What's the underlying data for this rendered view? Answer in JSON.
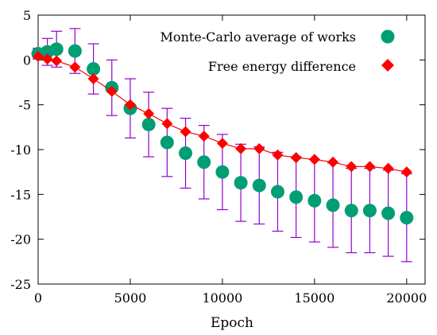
{
  "chart_data": {
    "type": "scatter",
    "xlabel": "Epoch",
    "ylabel": "",
    "xlim": [
      0,
      21000
    ],
    "ylim": [
      -25,
      5
    ],
    "xticks": [
      0,
      5000,
      10000,
      15000,
      20000
    ],
    "yticks": [
      -25,
      -20,
      -15,
      -10,
      -5,
      0,
      5
    ],
    "xtick_labels": [
      "0",
      "5000",
      "10000",
      "15000",
      "20000"
    ],
    "ytick_labels": [
      "-25",
      "-20",
      "-15",
      "-10",
      "-5",
      "0",
      "5"
    ],
    "grid": false,
    "legend_position": "top-right",
    "series": [
      {
        "name": "Monte-Carlo average of works",
        "marker": "circle",
        "color": "#009e73",
        "error_color": "#9400d3",
        "x": [
          0,
          500,
          1000,
          2000,
          3000,
          4000,
          5000,
          6000,
          7000,
          8000,
          9000,
          10000,
          11000,
          12000,
          13000,
          14000,
          15000,
          16000,
          17000,
          18000,
          19000,
          20000
        ],
        "y": [
          0.7,
          0.9,
          1.2,
          1.0,
          -1.0,
          -3.1,
          -5.4,
          -7.2,
          -9.2,
          -10.4,
          -11.4,
          -12.5,
          -13.7,
          -14.0,
          -14.7,
          -15.3,
          -15.7,
          -16.2,
          -16.8,
          -16.8,
          -17.1,
          -17.6
        ],
        "err": [
          0.6,
          1.5,
          2.0,
          2.5,
          2.8,
          3.1,
          3.3,
          3.6,
          3.8,
          3.9,
          4.1,
          4.2,
          4.3,
          4.3,
          4.4,
          4.5,
          4.6,
          4.7,
          4.7,
          4.7,
          4.8,
          4.9
        ]
      },
      {
        "name": "Free energy difference",
        "marker": "diamond",
        "color": "#ff0000",
        "line_color": "#ff0000",
        "x": [
          0,
          500,
          1000,
          2000,
          3000,
          4000,
          5000,
          6000,
          7000,
          8000,
          9000,
          10000,
          11000,
          12000,
          13000,
          14000,
          15000,
          16000,
          17000,
          18000,
          19000,
          20000
        ],
        "y": [
          0.4,
          0.1,
          -0.1,
          -0.8,
          -2.1,
          -3.5,
          -5.0,
          -6.0,
          -7.1,
          -8.0,
          -8.5,
          -9.3,
          -9.9,
          -9.9,
          -10.6,
          -10.9,
          -11.1,
          -11.4,
          -11.9,
          -11.9,
          -12.1,
          -12.5
        ]
      }
    ]
  }
}
